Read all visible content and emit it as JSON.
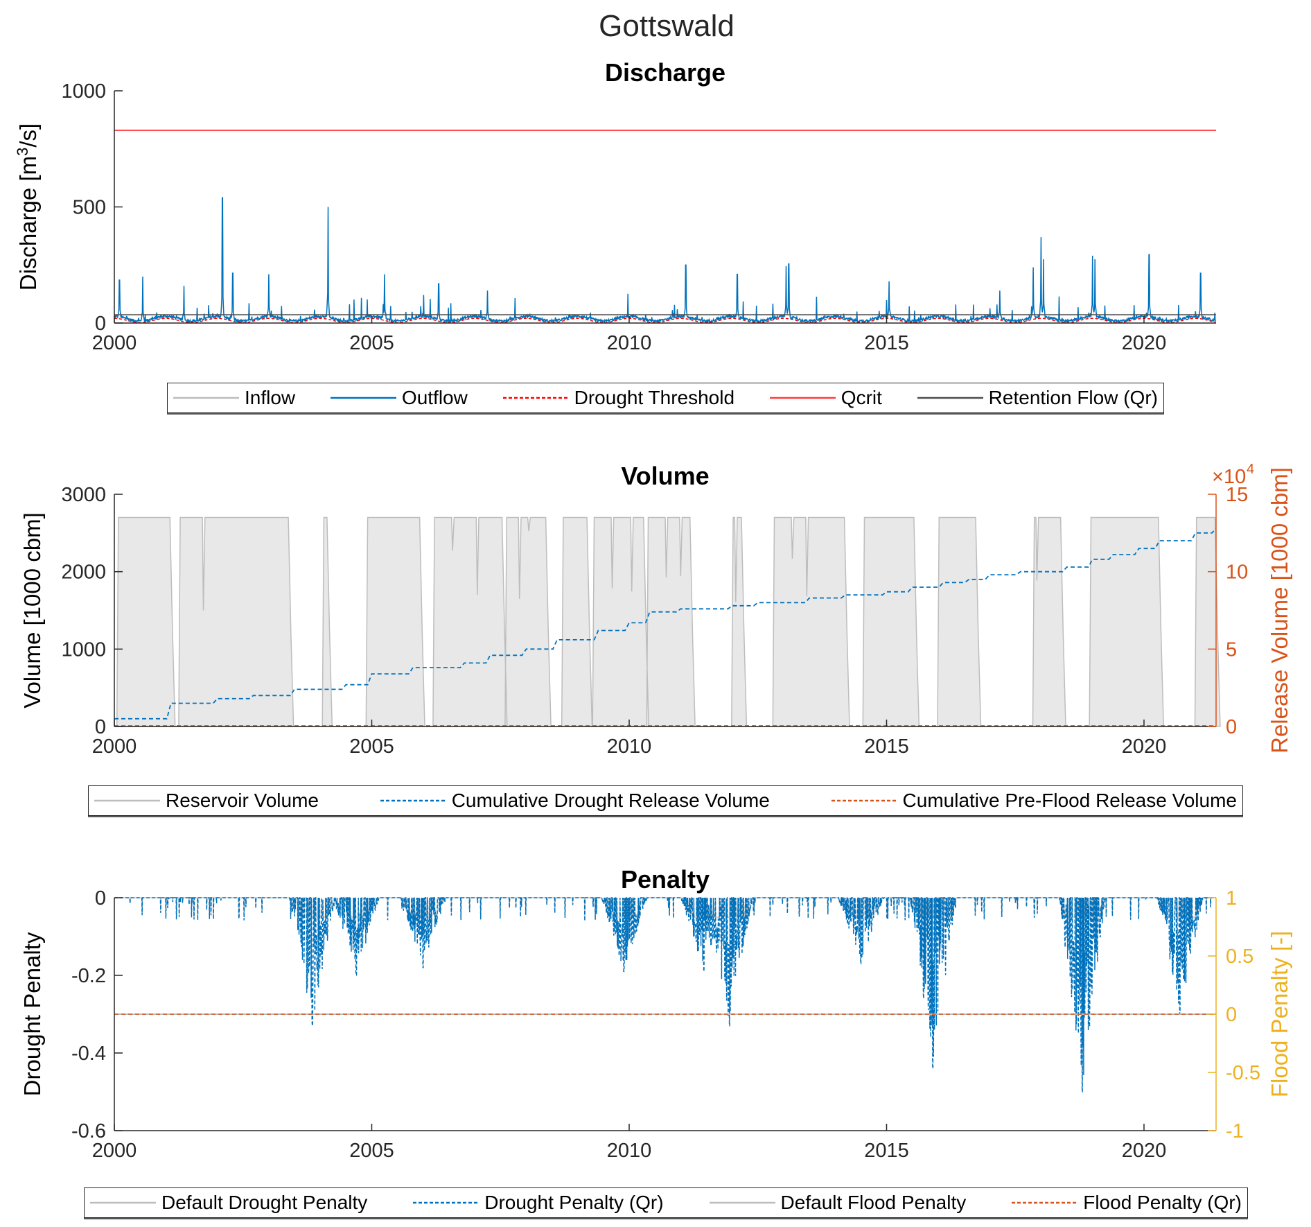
{
  "figure_title": "Gottswald",
  "chart_data": [
    {
      "type": "line",
      "title": "Discharge",
      "ylabel": "Discharge [m³/s]",
      "ylabel_parts": {
        "main": "Discharge [m",
        "sup": "3",
        "tail": "/s]"
      },
      "xlim": [
        2000,
        2021.4
      ],
      "ylim": [
        0,
        1000
      ],
      "xticks": [
        "2000",
        "2005",
        "2010",
        "2015",
        "2020"
      ],
      "yticks": [
        "0",
        "500",
        "1000"
      ],
      "legend": [
        "Inflow",
        "Outflow",
        "Drought Threshold",
        "Qcrit",
        "Retention Flow (Qr)"
      ],
      "legend_placement": "bottom-outside",
      "qcrit": 830,
      "retention_flow": 36,
      "drought_threshold_range": [
        3,
        20
      ],
      "outflow_peaks": [
        [
          2000.1,
          185
        ],
        [
          2000.55,
          200
        ],
        [
          2001.35,
          160
        ],
        [
          2002.1,
          540
        ],
        [
          2002.3,
          215
        ],
        [
          2003.0,
          210
        ],
        [
          2004.15,
          500
        ],
        [
          2005.25,
          210
        ],
        [
          2006.3,
          170
        ],
        [
          2007.25,
          140
        ],
        [
          2011.1,
          250
        ],
        [
          2012.1,
          210
        ],
        [
          2013.05,
          245
        ],
        [
          2013.1,
          255
        ],
        [
          2015.05,
          180
        ],
        [
          2017.2,
          140
        ],
        [
          2017.85,
          240
        ],
        [
          2018.0,
          370
        ],
        [
          2018.05,
          275
        ],
        [
          2019.0,
          290
        ],
        [
          2019.05,
          275
        ],
        [
          2020.1,
          295
        ],
        [
          2021.1,
          215
        ]
      ],
      "colors": {
        "inflow": "#bdbdbd",
        "outflow": "#0072bd",
        "drought": "#ff0000",
        "qcrit": "#ff3b3b",
        "qr": "#4d4d4d"
      }
    },
    {
      "type": "area",
      "title": "Volume",
      "ylabel": "Volume [1000 cbm]",
      "ylabel_right": "Release Volume [1000 cbm]",
      "right_exponent": "×10",
      "right_exponent_power": "4",
      "xlim": [
        2000,
        2021.4
      ],
      "ylim": [
        0,
        3000
      ],
      "ylim_right": [
        0,
        15
      ],
      "xticks": [
        "2000",
        "2005",
        "2010",
        "2015",
        "2020"
      ],
      "yticks": [
        "0",
        "1000",
        "2000",
        "3000"
      ],
      "yticks_right": [
        "0",
        "5",
        "10",
        "15"
      ],
      "legend": [
        "Reservoir Volume",
        "Cumulative Drought Release Volume",
        "Cumulative Pre-Flood Release Volume"
      ],
      "full_volume": 2700,
      "full_periods": [
        [
          2000.06,
          2001.1
        ],
        [
          2001.26,
          2003.4
        ],
        [
          2004.05,
          2004.15
        ],
        [
          2004.9,
          2005.95
        ],
        [
          2006.2,
          2007.55
        ],
        [
          2007.6,
          2008.4
        ],
        [
          2008.7,
          2009.2
        ],
        [
          2009.3,
          2010.3
        ],
        [
          2010.35,
          2011.2
        ],
        [
          2012.0,
          2012.2
        ],
        [
          2012.8,
          2014.2
        ],
        [
          2014.55,
          2015.55
        ],
        [
          2016.0,
          2016.75
        ],
        [
          2017.85,
          2018.4
        ],
        [
          2018.95,
          2020.3
        ],
        [
          2021.0,
          2021.4
        ]
      ],
      "cumulative_drought_release_1e4": [
        [
          2000,
          0.5
        ],
        [
          2001.1,
          1.5
        ],
        [
          2002.0,
          1.8
        ],
        [
          2002.7,
          2.0
        ],
        [
          2003.5,
          2.4
        ],
        [
          2004.5,
          2.7
        ],
        [
          2005.0,
          3.4
        ],
        [
          2005.8,
          3.8
        ],
        [
          2006.8,
          4.1
        ],
        [
          2007.3,
          4.6
        ],
        [
          2008.0,
          5.0
        ],
        [
          2008.6,
          5.6
        ],
        [
          2009.4,
          6.2
        ],
        [
          2010.0,
          6.7
        ],
        [
          2010.4,
          7.4
        ],
        [
          2011.0,
          7.6
        ],
        [
          2012.0,
          7.8
        ],
        [
          2012.5,
          8.0
        ],
        [
          2013.5,
          8.3
        ],
        [
          2014.2,
          8.5
        ],
        [
          2015.0,
          8.7
        ],
        [
          2015.5,
          9.0
        ],
        [
          2016.1,
          9.3
        ],
        [
          2016.6,
          9.5
        ],
        [
          2017.0,
          9.8
        ],
        [
          2017.6,
          10.0
        ],
        [
          2018.5,
          10.3
        ],
        [
          2019.0,
          10.8
        ],
        [
          2019.4,
          11.1
        ],
        [
          2019.9,
          11.5
        ],
        [
          2020.3,
          12.0
        ],
        [
          2021.0,
          12.5
        ],
        [
          2021.4,
          12.8
        ]
      ],
      "cumulative_preflood_release_1e4": 0,
      "colors": {
        "volume_fill": "#e8e8e8",
        "volume_line": "#bdbdbd",
        "drought": "#0072bd",
        "preflood": "#d95319",
        "right_axis": "#d95319"
      }
    },
    {
      "type": "line",
      "title": "Penalty",
      "ylabel": "Drought Penalty",
      "ylabel_right": "Flood Penalty [-]",
      "xlim": [
        2000,
        2021.4
      ],
      "ylim": [
        -0.6,
        0
      ],
      "ylim_right": [
        -1,
        1
      ],
      "xticks": [
        "2000",
        "2005",
        "2010",
        "2015",
        "2020"
      ],
      "yticks": [
        "-0.6",
        "-0.4",
        "-0.2",
        "0"
      ],
      "yticks_right": [
        "-1",
        "-0.5",
        "0",
        "0.5",
        "1"
      ],
      "legend": [
        "Default Drought Penalty",
        "Drought Penalty (Qr)",
        "Default Flood Penalty",
        "Flood Penalty (Qr)"
      ],
      "drought_penalty_minima": [
        [
          2003.85,
          -0.33
        ],
        [
          2004.7,
          -0.2
        ],
        [
          2006.0,
          -0.18
        ],
        [
          2009.9,
          -0.19
        ],
        [
          2011.45,
          -0.19
        ],
        [
          2011.95,
          -0.33
        ],
        [
          2014.5,
          -0.17
        ],
        [
          2015.9,
          -0.44
        ],
        [
          2018.8,
          -0.5
        ],
        [
          2020.7,
          -0.3
        ]
      ],
      "flood_penalty_qr": 0,
      "colors": {
        "default": "#bdbdbd",
        "drought": "#0072bd",
        "flood": "#d95319",
        "right_axis": "#edb120"
      }
    }
  ]
}
